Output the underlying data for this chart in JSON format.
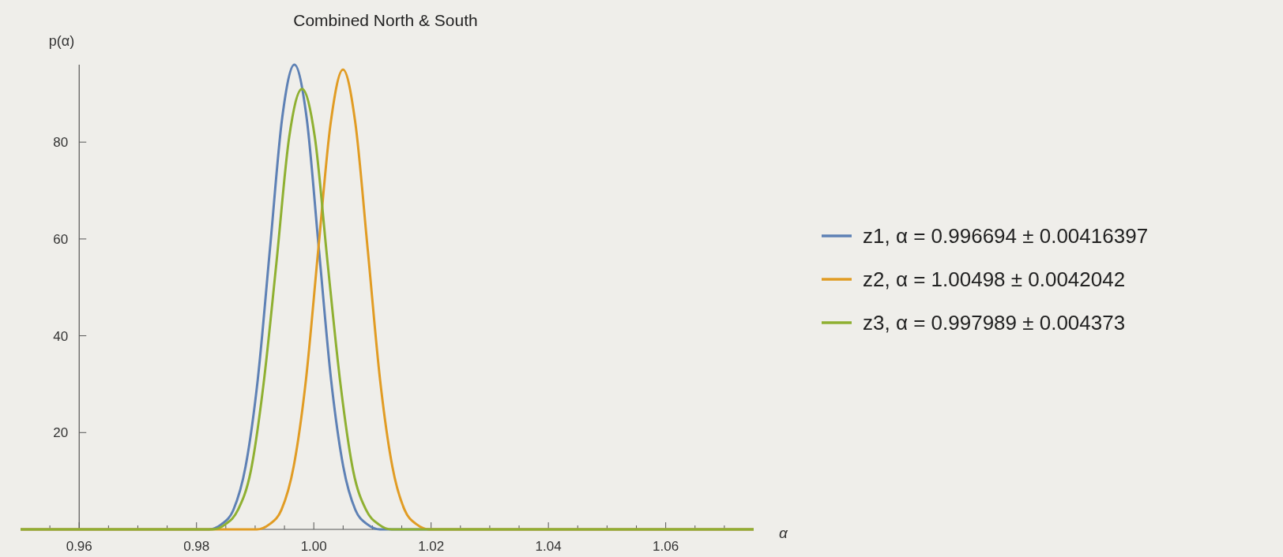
{
  "chart_data": {
    "type": "line",
    "title": "Combined North & South",
    "xlabel": "α",
    "ylabel": "p(α)",
    "xlim": [
      0.95,
      1.075
    ],
    "ylim": [
      0,
      96
    ],
    "xticks": [
      {
        "value": 0.955,
        "label": null
      },
      {
        "value": 0.96,
        "label": "0.96"
      },
      {
        "value": 0.965,
        "label": null
      },
      {
        "value": 0.97,
        "label": null
      },
      {
        "value": 0.975,
        "label": null
      },
      {
        "value": 0.98,
        "label": "0.98"
      },
      {
        "value": 0.985,
        "label": null
      },
      {
        "value": 0.99,
        "label": null
      },
      {
        "value": 0.995,
        "label": null
      },
      {
        "value": 1.0,
        "label": "1.00"
      },
      {
        "value": 1.005,
        "label": null
      },
      {
        "value": 1.01,
        "label": null
      },
      {
        "value": 1.015,
        "label": null
      },
      {
        "value": 1.02,
        "label": "1.02"
      },
      {
        "value": 1.025,
        "label": null
      },
      {
        "value": 1.03,
        "label": null
      },
      {
        "value": 1.035,
        "label": null
      },
      {
        "value": 1.04,
        "label": "1.04"
      },
      {
        "value": 1.045,
        "label": null
      },
      {
        "value": 1.05,
        "label": null
      },
      {
        "value": 1.055,
        "label": null
      },
      {
        "value": 1.06,
        "label": "1.06"
      },
      {
        "value": 1.065,
        "label": null
      },
      {
        "value": 1.07,
        "label": null
      }
    ],
    "yticks": [
      20,
      40,
      60,
      80
    ],
    "grid": false,
    "legend": "right",
    "line_style": "solid",
    "series": [
      {
        "name": "z1, α = 0.996694 ± 0.00416397",
        "color": "#5e81b5",
        "x": [
          0.95,
          0.98004,
          0.98212,
          0.9842,
          0.98628,
          0.98837,
          0.99045,
          0.99253,
          0.99461,
          0.99669,
          0.99878,
          1.00086,
          1.00294,
          1.00502,
          1.0071,
          1.00919,
          1.01127,
          1.01335,
          1.075
        ],
        "values": [
          0,
          0,
          0,
          1,
          4,
          13,
          31,
          58,
          85,
          96,
          85,
          58,
          31,
          13,
          4,
          1,
          0,
          0,
          0
        ]
      },
      {
        "name": "z2, α = 1.00498 ± 0.0042042",
        "color": "#e19c24",
        "x": [
          0.95,
          0.98817,
          0.99027,
          0.99237,
          0.99447,
          0.99657,
          0.99867,
          1.00078,
          1.00288,
          1.00498,
          1.00708,
          1.00918,
          1.01129,
          1.01339,
          1.01549,
          1.01759,
          1.01969,
          1.0218,
          1.075
        ],
        "values": [
          0,
          0,
          0,
          1,
          4,
          13,
          31,
          58,
          84,
          95,
          84,
          58,
          31,
          13,
          4,
          1,
          0,
          0,
          0
        ]
      },
      {
        "name": "z3, α = 0.997989 ± 0.004373",
        "color": "#8fb032",
        "x": [
          0.95,
          0.9805,
          0.98268,
          0.98487,
          0.98706,
          0.98925,
          0.99143,
          0.99362,
          0.9958,
          0.99799,
          1.00018,
          1.00236,
          1.00455,
          1.00673,
          1.00892,
          1.01111,
          1.01329,
          1.01548,
          1.075
        ],
        "values": [
          0,
          0,
          0,
          1,
          4,
          12,
          30,
          55,
          81,
          91,
          81,
          55,
          30,
          12,
          4,
          1,
          0,
          0,
          0
        ]
      }
    ]
  }
}
